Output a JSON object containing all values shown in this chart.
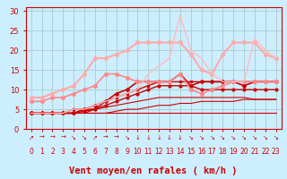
{
  "xlabel": "Vent moyen/en rafales ( km/h )",
  "xlim": [
    -0.5,
    23.5
  ],
  "ylim": [
    0,
    31
  ],
  "yticks": [
    0,
    5,
    10,
    15,
    20,
    25,
    30
  ],
  "xticks": [
    0,
    1,
    2,
    3,
    4,
    5,
    6,
    7,
    8,
    9,
    10,
    11,
    12,
    13,
    14,
    15,
    16,
    17,
    18,
    19,
    20,
    21,
    22,
    23
  ],
  "background_color": "#cceeff",
  "grid_color": "#aacccc",
  "series": [
    {
      "x": [
        0,
        1,
        2,
        3,
        4,
        5,
        6,
        7,
        8,
        9,
        10,
        11,
        12,
        13,
        14,
        15,
        16,
        17,
        18,
        19,
        20,
        21,
        22,
        23
      ],
      "y": [
        4,
        4,
        4,
        4,
        4,
        4,
        4,
        4,
        4,
        4,
        4,
        4,
        4,
        4,
        4,
        4,
        4,
        4,
        4,
        4,
        4,
        4,
        4,
        4
      ],
      "color": "#cc0000",
      "linewidth": 0.8,
      "marker": null,
      "linestyle": "-"
    },
    {
      "x": [
        0,
        1,
        2,
        3,
        4,
        5,
        6,
        7,
        8,
        9,
        10,
        11,
        12,
        13,
        14,
        15,
        16,
        17,
        18,
        19,
        20,
        21,
        22,
        23
      ],
      "y": [
        4,
        4,
        4,
        4,
        4,
        4,
        4,
        4,
        4.5,
        5,
        5,
        5.5,
        6,
        6,
        6.5,
        6.5,
        7,
        7,
        7,
        7,
        7.5,
        7.5,
        7.5,
        7.5
      ],
      "color": "#cc0000",
      "linewidth": 0.8,
      "marker": null,
      "linestyle": "-"
    },
    {
      "x": [
        0,
        1,
        2,
        3,
        4,
        5,
        6,
        7,
        8,
        9,
        10,
        11,
        12,
        13,
        14,
        15,
        16,
        17,
        18,
        19,
        20,
        21,
        22,
        23
      ],
      "y": [
        4,
        4,
        4,
        4,
        4,
        4,
        5,
        5.5,
        6,
        6.5,
        7,
        7.5,
        8,
        8,
        8,
        8,
        8,
        8,
        8,
        8,
        8,
        7.5,
        7.5,
        7.5
      ],
      "color": "#cc0000",
      "linewidth": 0.8,
      "marker": null,
      "linestyle": "-"
    },
    {
      "x": [
        0,
        1,
        2,
        3,
        4,
        5,
        6,
        7,
        8,
        9,
        10,
        11,
        12,
        13,
        14,
        15,
        16,
        17,
        18,
        19,
        20,
        21,
        22,
        23
      ],
      "y": [
        4,
        4,
        4,
        4,
        4,
        4.5,
        5,
        6,
        7,
        8,
        9,
        10,
        11,
        11,
        11,
        11,
        10,
        10,
        10,
        10,
        10,
        10,
        10,
        10
      ],
      "color": "#cc0000",
      "linewidth": 1.0,
      "marker": "o",
      "markersize": 2.0,
      "linestyle": "-"
    },
    {
      "x": [
        0,
        1,
        2,
        3,
        4,
        5,
        6,
        7,
        8,
        9,
        10,
        11,
        12,
        13,
        14,
        15,
        16,
        17,
        18,
        19,
        20,
        21,
        22,
        23
      ],
      "y": [
        4,
        4,
        4,
        4,
        5,
        5,
        5,
        7,
        8,
        9,
        10,
        11,
        12,
        12,
        12,
        12,
        12,
        12,
        12,
        12,
        12,
        12,
        12,
        12
      ],
      "color": "#cc0000",
      "linewidth": 1.0,
      "marker": "s",
      "markersize": 2.0,
      "linestyle": "-"
    },
    {
      "x": [
        0,
        1,
        2,
        3,
        4,
        5,
        6,
        7,
        8,
        9,
        10,
        11,
        12,
        13,
        14,
        15,
        16,
        17,
        18,
        19,
        20,
        21,
        22,
        23
      ],
      "y": [
        4,
        4,
        4,
        4,
        4,
        5,
        6,
        7,
        9,
        10,
        12,
        12,
        12,
        12,
        14,
        11,
        12,
        12,
        12,
        12,
        11,
        12,
        12,
        12
      ],
      "color": "#cc0000",
      "linewidth": 1.2,
      "marker": "D",
      "markersize": 2.0,
      "linestyle": "-"
    },
    {
      "x": [
        0,
        1,
        2,
        3,
        4,
        5,
        6,
        7,
        8,
        9,
        10,
        11,
        12,
        13,
        14,
        15,
        16,
        17,
        18,
        19,
        20,
        21,
        22,
        23
      ],
      "y": [
        7,
        7,
        8,
        8,
        9,
        10,
        11,
        14,
        14,
        13,
        12,
        12,
        12,
        12,
        14,
        10,
        9,
        10,
        11,
        12,
        12,
        12,
        12,
        12
      ],
      "color": "#ff8888",
      "linewidth": 1.2,
      "marker": "o",
      "markersize": 2.5,
      "linestyle": "-"
    },
    {
      "x": [
        0,
        1,
        2,
        3,
        4,
        5,
        6,
        7,
        8,
        9,
        10,
        11,
        12,
        13,
        14,
        15,
        16,
        17,
        18,
        19,
        20,
        21,
        22,
        23
      ],
      "y": [
        8,
        8,
        9,
        10,
        11,
        14,
        18,
        18,
        19,
        20,
        22,
        22,
        22,
        22,
        22,
        19,
        15,
        14,
        19,
        22,
        22,
        22,
        19,
        18
      ],
      "color": "#ffaaaa",
      "linewidth": 1.5,
      "marker": "o",
      "markersize": 2.5,
      "linestyle": "-"
    },
    {
      "x": [
        0,
        1,
        2,
        3,
        4,
        5,
        6,
        7,
        8,
        9,
        10,
        11,
        12,
        13,
        14,
        15,
        16,
        17,
        18,
        19,
        20,
        21,
        22,
        23
      ],
      "y": [
        4,
        4,
        4,
        4,
        5,
        5,
        6,
        7,
        8,
        9,
        10,
        14,
        16,
        18,
        29,
        20,
        18,
        14,
        12,
        12,
        12,
        23,
        20,
        18
      ],
      "color": "#ffbbbb",
      "linewidth": 1.0,
      "marker": null,
      "linestyle": "-"
    }
  ],
  "wind_arrows": [
    "↗",
    "→",
    "→",
    "→",
    "↘",
    "↘",
    "↗",
    "→",
    "→",
    "↘",
    "↓",
    "↓",
    "↓",
    "↓",
    "↓",
    "↘",
    "↘",
    "↘",
    "↘",
    "↘",
    "↘",
    "↘",
    "↘",
    "↘"
  ],
  "xlabel_fontsize": 7.5,
  "tick_fontsize": 6,
  "tick_color": "#cc0000",
  "axis_color": "#cc0000"
}
